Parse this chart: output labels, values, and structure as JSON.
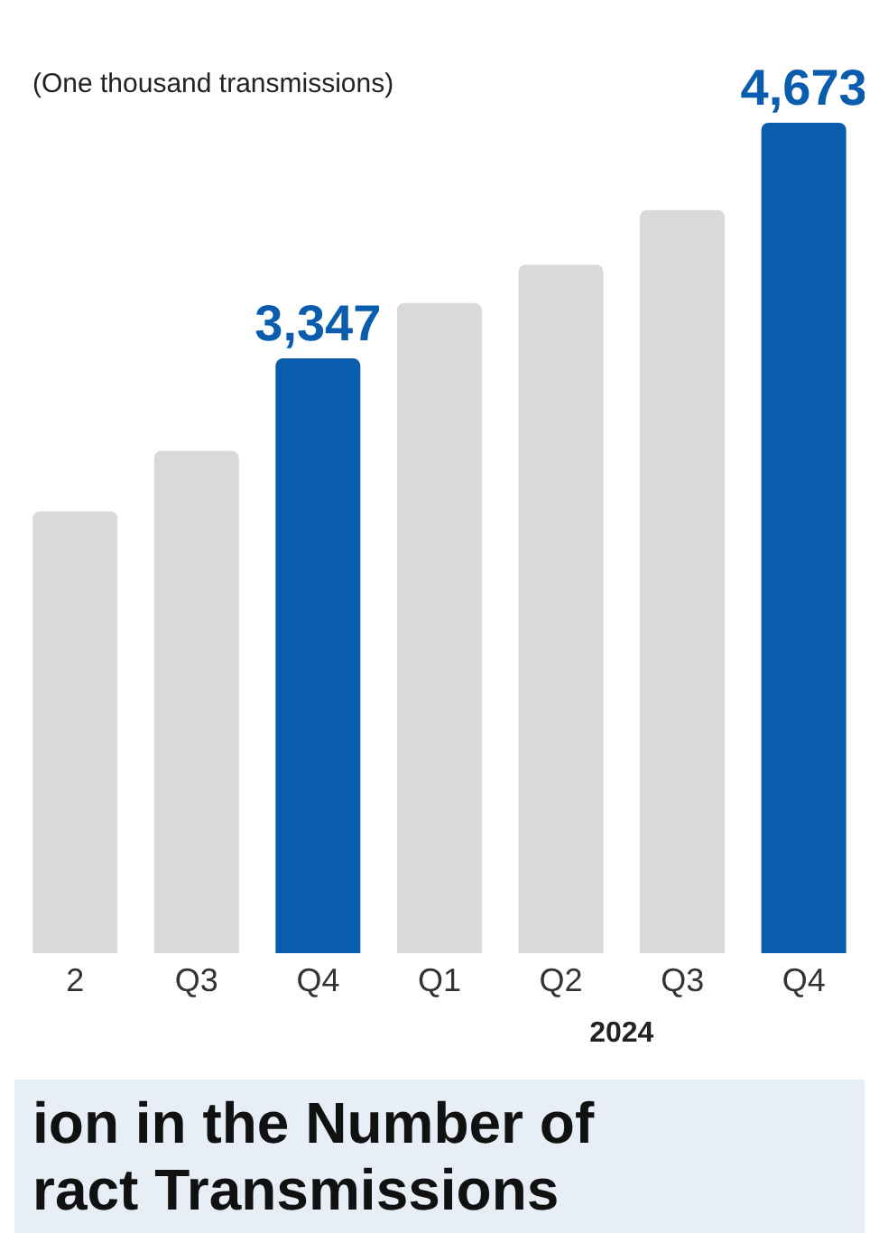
{
  "chart_data": {
    "type": "bar",
    "title": "ion in the Number of\nract Transmissions",
    "categories": [
      "2",
      "Q3",
      "Q4",
      "Q1",
      "Q2",
      "Q3",
      "Q4"
    ],
    "values": [
      2486,
      2827,
      3347,
      3659,
      3874,
      4182,
      4673
    ],
    "colors": [
      "#d9d9d9",
      "#d9d9d9",
      "#0a5cad",
      "#d9d9d9",
      "#d9d9d9",
      "#d9d9d9",
      "#0a5cad"
    ],
    "value_labels": [
      null,
      null,
      "3,347",
      null,
      null,
      null,
      "4,673"
    ],
    "annotations": [
      "(One thousand transmissions)",
      "2024"
    ]
  }
}
